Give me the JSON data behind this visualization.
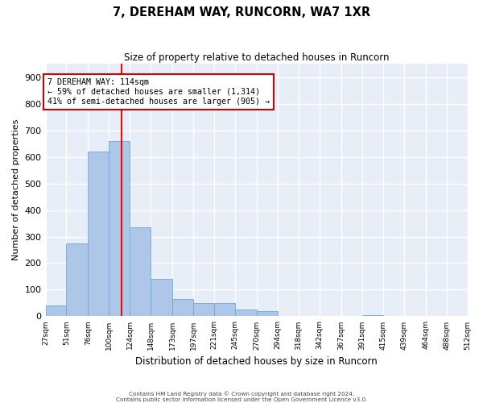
{
  "title": "7, DEREHAM WAY, RUNCORN, WA7 1XR",
  "subtitle": "Size of property relative to detached houses in Runcorn",
  "xlabel": "Distribution of detached houses by size in Runcorn",
  "ylabel": "Number of detached properties",
  "bar_color": "#aec6e8",
  "bar_edge_color": "#6aaad4",
  "background_color": "#e8eef8",
  "grid_color": "#ffffff",
  "vline_x": 114,
  "vline_color": "red",
  "annotation_text": "7 DEREHAM WAY: 114sqm\n← 59% of detached houses are smaller (1,314)\n41% of semi-detached houses are larger (905) →",
  "annotation_box_color": "white",
  "annotation_box_edge": "#cc0000",
  "bin_edges": [
    27,
    51,
    76,
    100,
    124,
    148,
    173,
    197,
    221,
    245,
    270,
    294,
    318,
    342,
    367,
    391,
    415,
    439,
    464,
    488,
    512
  ],
  "bin_heights": [
    40,
    275,
    620,
    660,
    335,
    140,
    65,
    50,
    50,
    25,
    20,
    0,
    0,
    0,
    0,
    5,
    0,
    0,
    0,
    0
  ],
  "ylim": [
    0,
    950
  ],
  "yticks": [
    0,
    100,
    200,
    300,
    400,
    500,
    600,
    700,
    800,
    900
  ],
  "footer_line1": "Contains HM Land Registry data © Crown copyright and database right 2024.",
  "footer_line2": "Contains public sector information licensed under the Open Government Licence v3.0."
}
